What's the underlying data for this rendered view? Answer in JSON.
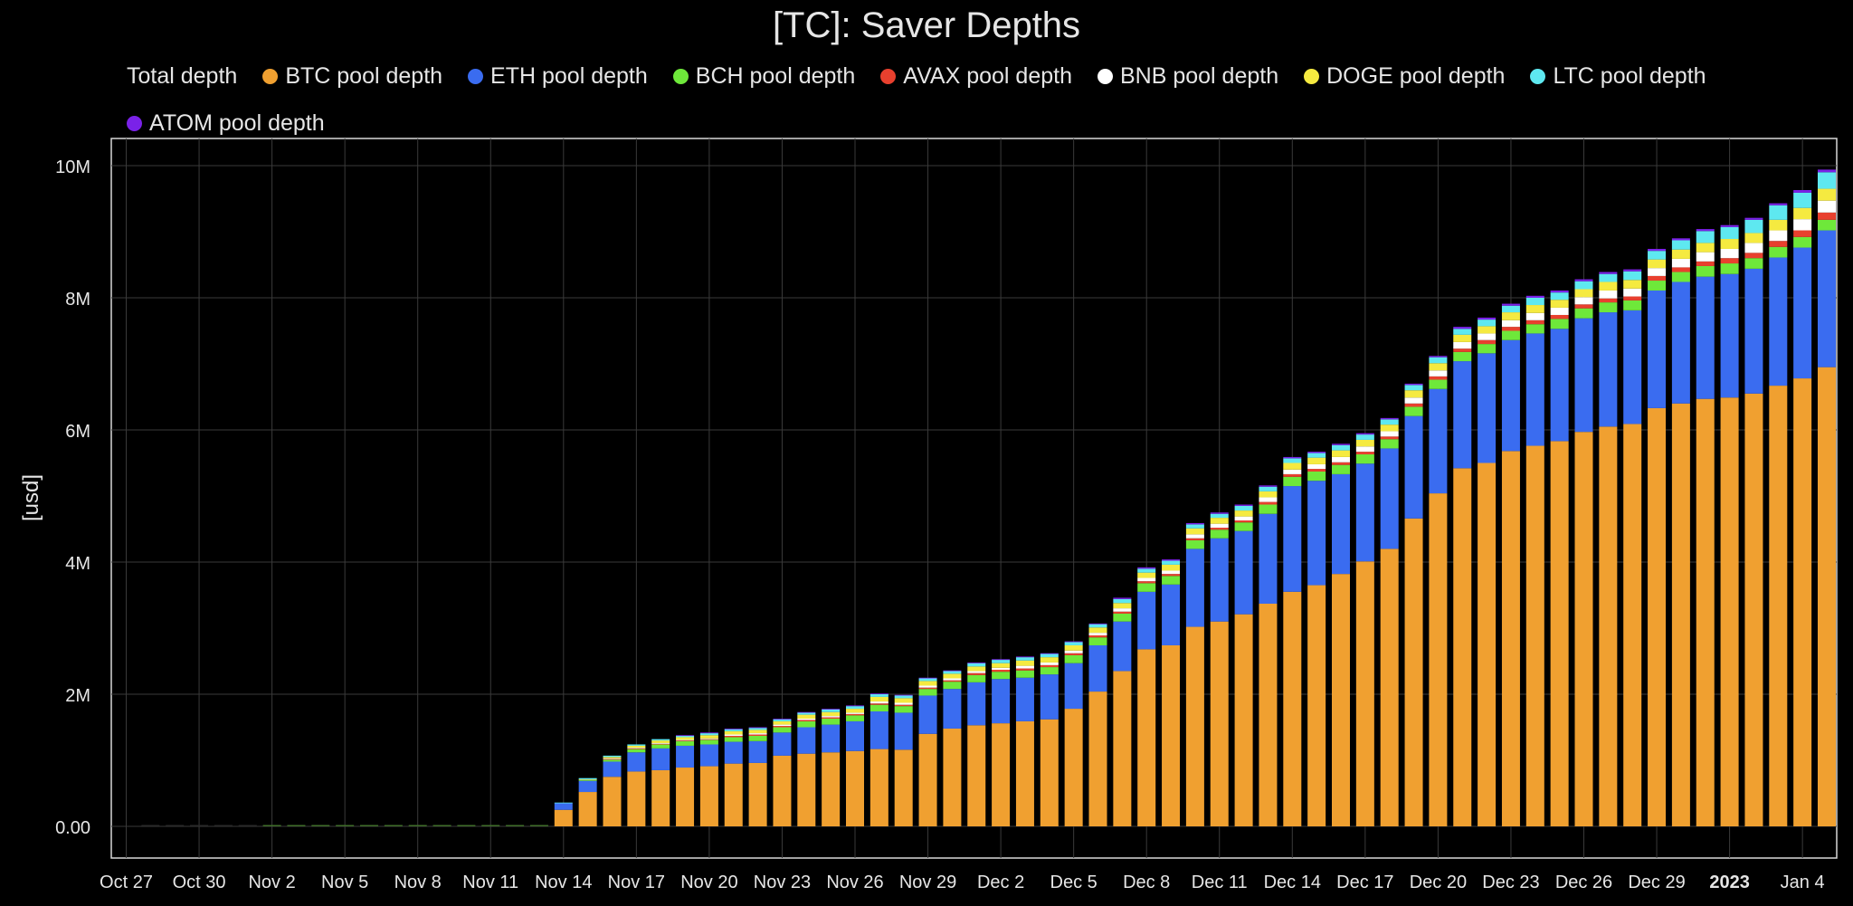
{
  "chart_data": {
    "type": "bar",
    "stacked": true,
    "title": "[TC]: Saver Depths",
    "ylabel": "[usd]",
    "ylim": [
      0,
      10400000
    ],
    "y_ticks": [
      {
        "value": 0,
        "label": "0.00"
      },
      {
        "value": 2000000,
        "label": "2M"
      },
      {
        "value": 4000000,
        "label": "4M"
      },
      {
        "value": 6000000,
        "label": "6M"
      },
      {
        "value": 8000000,
        "label": "8M"
      },
      {
        "value": 10000000,
        "label": "10M"
      }
    ],
    "x_ticks": [
      {
        "index": 0,
        "label": "Oct 27"
      },
      {
        "index": 3,
        "label": "Oct 30"
      },
      {
        "index": 6,
        "label": "Nov 2"
      },
      {
        "index": 9,
        "label": "Nov 5"
      },
      {
        "index": 12,
        "label": "Nov 8"
      },
      {
        "index": 15,
        "label": "Nov 11"
      },
      {
        "index": 18,
        "label": "Nov 14"
      },
      {
        "index": 21,
        "label": "Nov 17"
      },
      {
        "index": 24,
        "label": "Nov 20"
      },
      {
        "index": 27,
        "label": "Nov 23"
      },
      {
        "index": 30,
        "label": "Nov 26"
      },
      {
        "index": 33,
        "label": "Nov 29"
      },
      {
        "index": 36,
        "label": "Dec 2"
      },
      {
        "index": 39,
        "label": "Dec 5"
      },
      {
        "index": 42,
        "label": "Dec 8"
      },
      {
        "index": 45,
        "label": "Dec 11"
      },
      {
        "index": 48,
        "label": "Dec 14"
      },
      {
        "index": 51,
        "label": "Dec 17"
      },
      {
        "index": 54,
        "label": "Dec 20"
      },
      {
        "index": 57,
        "label": "Dec 23"
      },
      {
        "index": 60,
        "label": "Dec 26"
      },
      {
        "index": 63,
        "label": "Dec 29"
      },
      {
        "index": 66,
        "label": "2023",
        "bold": true
      },
      {
        "index": 69,
        "label": "Jan 4"
      }
    ],
    "x_count": 71,
    "legend": [
      {
        "name": "Total depth",
        "color": null
      },
      {
        "name": "BTC pool depth",
        "color": "#f0a030"
      },
      {
        "name": "ETH pool depth",
        "color": "#3a6cf0"
      },
      {
        "name": "BCH pool depth",
        "color": "#6ee83a"
      },
      {
        "name": "AVAX pool depth",
        "color": "#e8402e"
      },
      {
        "name": "BNB pool depth",
        "color": "#ffffff"
      },
      {
        "name": "DOGE pool depth",
        "color": "#f5ea40"
      },
      {
        "name": "LTC pool depth",
        "color": "#5ee8f0"
      },
      {
        "name": "ATOM pool depth",
        "color": "#7a22e8"
      }
    ],
    "start_index": 18,
    "series": [
      {
        "name": "BTC pool depth",
        "color": "#f0a030",
        "values": [
          0.25,
          0.52,
          0.75,
          0.83,
          0.85,
          0.89,
          0.91,
          0.95,
          0.96,
          1.07,
          1.1,
          1.12,
          1.14,
          1.17,
          1.16,
          1.4,
          1.48,
          1.53,
          1.56,
          1.59,
          1.62,
          1.78,
          2.04,
          2.35,
          2.68,
          2.74,
          3.02,
          3.1,
          3.21,
          3.37,
          3.55,
          3.65,
          3.82,
          4.01,
          4.2,
          4.66,
          5.04,
          5.42,
          5.5,
          5.68,
          5.76,
          5.83,
          5.97,
          6.05,
          6.09,
          6.33,
          6.4,
          6.47,
          6.49,
          6.55,
          6.67,
          6.78,
          6.95
        ]
      },
      {
        "name": "ETH pool depth",
        "color": "#3a6cf0",
        "values": [
          0.1,
          0.17,
          0.23,
          0.29,
          0.33,
          0.33,
          0.33,
          0.33,
          0.33,
          0.35,
          0.4,
          0.42,
          0.45,
          0.57,
          0.56,
          0.58,
          0.6,
          0.65,
          0.67,
          0.66,
          0.68,
          0.69,
          0.7,
          0.75,
          0.87,
          0.92,
          1.18,
          1.26,
          1.26,
          1.36,
          1.6,
          1.58,
          1.51,
          1.48,
          1.52,
          1.55,
          1.58,
          1.62,
          1.66,
          1.68,
          1.7,
          1.7,
          1.72,
          1.73,
          1.72,
          1.78,
          1.84,
          1.85,
          1.87,
          1.89,
          1.94,
          1.98,
          2.07
        ]
      },
      {
        "name": "BCH pool depth",
        "color": "#6ee83a",
        "values": [
          0,
          0.01,
          0.03,
          0.05,
          0.06,
          0.07,
          0.07,
          0.07,
          0.08,
          0.08,
          0.09,
          0.09,
          0.09,
          0.1,
          0.1,
          0.1,
          0.11,
          0.11,
          0.11,
          0.11,
          0.11,
          0.12,
          0.12,
          0.12,
          0.13,
          0.13,
          0.13,
          0.13,
          0.13,
          0.14,
          0.14,
          0.14,
          0.14,
          0.14,
          0.14,
          0.14,
          0.14,
          0.14,
          0.14,
          0.14,
          0.14,
          0.15,
          0.15,
          0.15,
          0.15,
          0.15,
          0.15,
          0.16,
          0.16,
          0.16,
          0.16,
          0.16,
          0.16
        ]
      },
      {
        "name": "AVAX pool depth",
        "color": "#e8402e",
        "values": [
          0,
          0,
          0.01,
          0.01,
          0.01,
          0.01,
          0.01,
          0.02,
          0.02,
          0.02,
          0.02,
          0.02,
          0.02,
          0.02,
          0.02,
          0.02,
          0.02,
          0.03,
          0.03,
          0.03,
          0.03,
          0.03,
          0.03,
          0.03,
          0.03,
          0.03,
          0.03,
          0.03,
          0.03,
          0.04,
          0.04,
          0.04,
          0.04,
          0.04,
          0.04,
          0.05,
          0.05,
          0.05,
          0.06,
          0.06,
          0.06,
          0.06,
          0.06,
          0.06,
          0.06,
          0.07,
          0.07,
          0.07,
          0.08,
          0.08,
          0.09,
          0.1,
          0.11
        ]
      },
      {
        "name": "BNB pool depth",
        "color": "#ffffff",
        "values": [
          0,
          0,
          0.01,
          0.01,
          0.01,
          0.01,
          0.01,
          0.02,
          0.02,
          0.02,
          0.02,
          0.02,
          0.02,
          0.03,
          0.03,
          0.03,
          0.03,
          0.03,
          0.03,
          0.04,
          0.04,
          0.04,
          0.04,
          0.05,
          0.05,
          0.05,
          0.06,
          0.06,
          0.06,
          0.07,
          0.07,
          0.07,
          0.08,
          0.08,
          0.08,
          0.09,
          0.09,
          0.1,
          0.1,
          0.1,
          0.11,
          0.11,
          0.11,
          0.12,
          0.12,
          0.12,
          0.13,
          0.14,
          0.14,
          0.15,
          0.16,
          0.17,
          0.18
        ]
      },
      {
        "name": "DOGE pool depth",
        "color": "#f5ea40",
        "values": [
          0,
          0.01,
          0.02,
          0.03,
          0.04,
          0.04,
          0.05,
          0.05,
          0.05,
          0.05,
          0.06,
          0.06,
          0.06,
          0.07,
          0.07,
          0.07,
          0.07,
          0.07,
          0.07,
          0.08,
          0.08,
          0.08,
          0.08,
          0.08,
          0.08,
          0.09,
          0.09,
          0.09,
          0.09,
          0.09,
          0.1,
          0.1,
          0.1,
          0.1,
          0.1,
          0.11,
          0.11,
          0.11,
          0.11,
          0.12,
          0.12,
          0.12,
          0.12,
          0.13,
          0.13,
          0.13,
          0.14,
          0.14,
          0.15,
          0.15,
          0.16,
          0.17,
          0.18
        ]
      },
      {
        "name": "LTC pool depth",
        "color": "#5ee8f0",
        "values": [
          0.01,
          0.02,
          0.02,
          0.02,
          0.02,
          0.02,
          0.03,
          0.03,
          0.03,
          0.03,
          0.03,
          0.04,
          0.04,
          0.04,
          0.04,
          0.04,
          0.04,
          0.05,
          0.05,
          0.05,
          0.05,
          0.05,
          0.05,
          0.06,
          0.06,
          0.06,
          0.06,
          0.06,
          0.07,
          0.07,
          0.07,
          0.07,
          0.08,
          0.08,
          0.08,
          0.08,
          0.09,
          0.09,
          0.1,
          0.1,
          0.11,
          0.11,
          0.12,
          0.12,
          0.13,
          0.13,
          0.14,
          0.18,
          0.18,
          0.2,
          0.22,
          0.23,
          0.25
        ]
      },
      {
        "name": "ATOM pool depth",
        "color": "#7a22e8",
        "values": [
          0,
          0,
          0,
          0,
          0,
          0.01,
          0.01,
          0.01,
          0.01,
          0.01,
          0.01,
          0.01,
          0.01,
          0.01,
          0.01,
          0.01,
          0.01,
          0.01,
          0.01,
          0.01,
          0.01,
          0.01,
          0.01,
          0.02,
          0.02,
          0.02,
          0.02,
          0.02,
          0.02,
          0.02,
          0.02,
          0.02,
          0.02,
          0.02,
          0.02,
          0.02,
          0.02,
          0.03,
          0.03,
          0.03,
          0.03,
          0.03,
          0.03,
          0.03,
          0.03,
          0.03,
          0.03,
          0.03,
          0.03,
          0.03,
          0.03,
          0.04,
          0.04
        ]
      }
    ],
    "value_unit_multiplier": 1000000,
    "grid": true,
    "legend_position": "top"
  }
}
